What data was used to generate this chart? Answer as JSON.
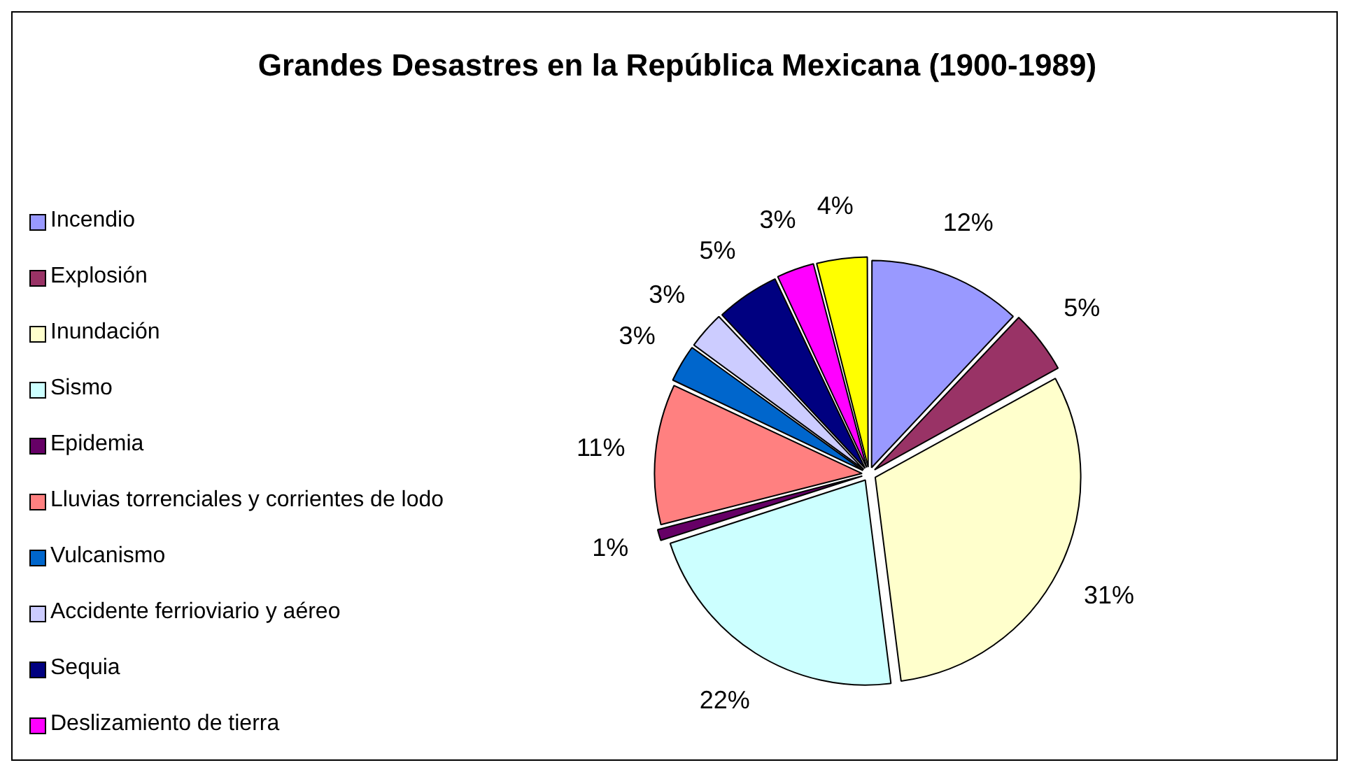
{
  "chart_data": {
    "type": "pie",
    "title": "Grandes Desastres en la República Mexicana (1900-1989)",
    "categories": [
      "Incendio",
      "Explosión",
      "Inundación",
      "Sismo",
      "Epidemia",
      "Lluvias torrenciales y corrientes de lodo",
      "Vulcanismo",
      "Accidente ferrioviario y aéreo",
      "Sequia",
      "Deslizamiento de tierra",
      null
    ],
    "values": [
      12,
      5,
      31,
      22,
      1,
      11,
      3,
      3,
      5,
      3,
      4
    ],
    "value_labels": [
      "12%",
      "5%",
      "31%",
      "22%",
      "1%",
      "11%",
      "3%",
      "3%",
      "5%",
      "3%",
      "4%"
    ],
    "colors": [
      "#9999ff",
      "#993366",
      "#ffffcc",
      "#ccffff",
      "#660066",
      "#ff8080",
      "#0066cc",
      "#ccccff",
      "#000080",
      "#ff00ff",
      "#ffff00"
    ],
    "legend": "left"
  }
}
